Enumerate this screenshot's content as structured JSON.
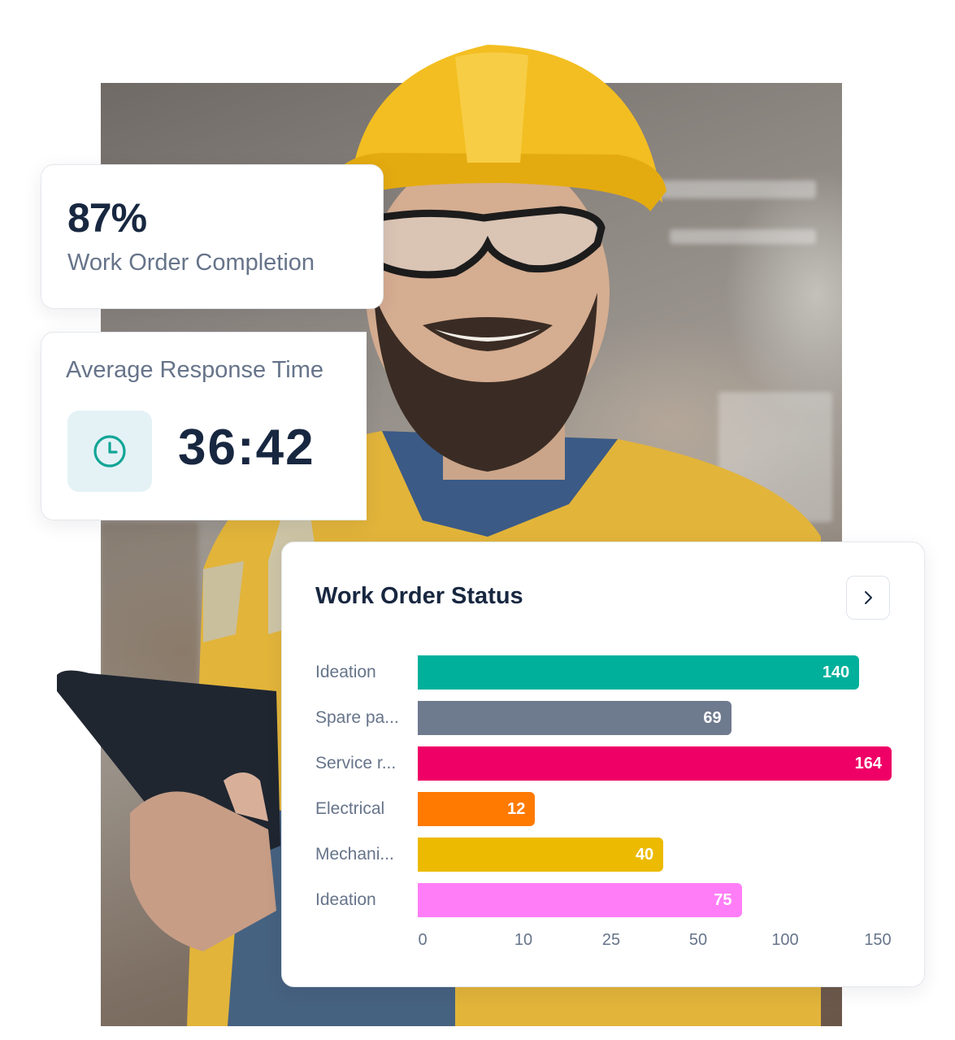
{
  "completion": {
    "percent": "87%",
    "label": "Work Order Completion"
  },
  "response": {
    "title": "Average Response Time",
    "time": "36:42",
    "icon": "clock-icon",
    "icon_color": "#12a596"
  },
  "status": {
    "title": "Work Order Status",
    "button_icon": "chevron-right-icon"
  },
  "chart_data": {
    "type": "bar",
    "orientation": "horizontal",
    "title": "Work Order Status",
    "categories": [
      "Ideation",
      "Spare pa...",
      "Service r...",
      "Electrical",
      "Mechani...",
      "Ideation"
    ],
    "values": [
      140,
      69,
      164,
      12,
      40,
      75
    ],
    "colors": [
      "#00b09b",
      "#6e7a8d",
      "#ef0066",
      "#ff7a00",
      "#ecba00",
      "#ff7ef7"
    ],
    "x_ticks": [
      "0",
      "10",
      "25",
      "50",
      "100",
      "150"
    ],
    "xlabel": "",
    "ylabel": "",
    "grid": false
  }
}
